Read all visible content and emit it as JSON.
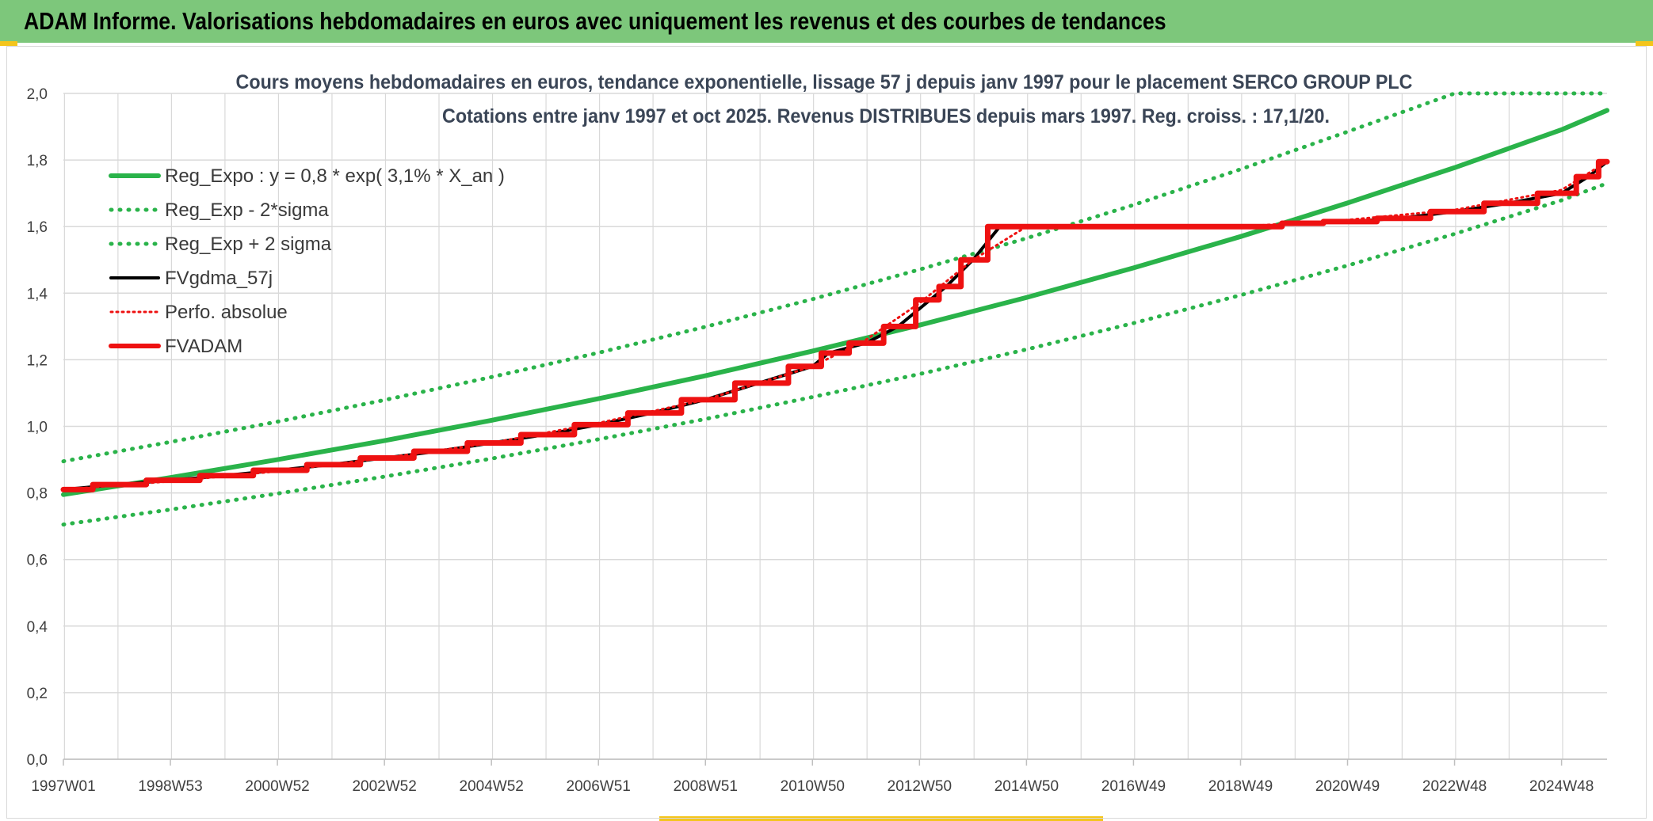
{
  "header": {
    "title": "ADAM Informe. Valorisations hebdomadaires en euros avec uniquement les revenus et des courbes de tendances"
  },
  "colors": {
    "banner": "#7dc77b",
    "trend_green": "#2ab34a",
    "black": "#000000",
    "red": "#ee1111",
    "grid": "#d9d9d9"
  },
  "chart_data": {
    "type": "line",
    "title": "Cours moyens hebdomadaires en euros, tendance exponentielle, lissage 57 j depuis janv 1997 pour le placement SERCO GROUP PLC",
    "subtitle": "Cotations entre janv 1997 et oct 2025. Revenus DISTRIBUES depuis mars 1997. Reg. croiss. : 17,1/20.",
    "xlabel": "",
    "ylabel": "",
    "ylim": [
      0,
      2
    ],
    "xlim": [
      1997.0,
      2025.85
    ],
    "grid": true,
    "legend_position": "top-left",
    "y_ticks": [
      "0,0",
      "0,2",
      "0,4",
      "0,6",
      "0,8",
      "1,0",
      "1,2",
      "1,4",
      "1,6",
      "1,8",
      "2,0"
    ],
    "x_ticks": [
      "1997W01",
      "1998W53",
      "2000W52",
      "2002W52",
      "2004W52",
      "2006W51",
      "2008W51",
      "2010W50",
      "2012W50",
      "2014W50",
      "2016W49",
      "2018W49",
      "2020W49",
      "2022W48",
      "2024W48"
    ],
    "x_tick_years": [
      1997.0,
      1999.0,
      2001.0,
      2003.0,
      2005.0,
      2007.0,
      2009.0,
      2011.0,
      2013.0,
      2015.0,
      2017.0,
      2019.0,
      2021.0,
      2023.0,
      2025.0
    ],
    "series": [
      {
        "name": "Reg_Expo : y = 0,8 * exp( 3,1% *  X_an )",
        "style": "solid",
        "color": "#2ab34a",
        "x": [
          1997.0,
          1999.0,
          2001.0,
          2003.0,
          2005.0,
          2007.0,
          2009.0,
          2011.0,
          2013.0,
          2015.0,
          2017.0,
          2019.0,
          2021.0,
          2023.0,
          2025.0,
          2025.85
        ],
        "y": [
          0.795,
          0.846,
          0.9,
          0.957,
          1.018,
          1.083,
          1.152,
          1.226,
          1.304,
          1.387,
          1.476,
          1.57,
          1.671,
          1.777,
          1.891,
          1.949
        ]
      },
      {
        "name": "Reg_Exp - 2*sigma",
        "style": "dotted",
        "color": "#2ab34a",
        "x": [
          1997.0,
          1999.0,
          2001.0,
          2003.0,
          2005.0,
          2007.0,
          2009.0,
          2011.0,
          2013.0,
          2015.0,
          2017.0,
          2019.0,
          2021.0,
          2023.0,
          2025.0,
          2025.85
        ],
        "y": [
          0.705,
          0.75,
          0.798,
          0.849,
          0.903,
          0.961,
          1.022,
          1.088,
          1.157,
          1.231,
          1.31,
          1.394,
          1.483,
          1.578,
          1.679,
          1.73
        ]
      },
      {
        "name": "Reg_Exp + 2 sigma",
        "style": "dotted",
        "color": "#2ab34a",
        "x": [
          1997.0,
          1999.0,
          2001.0,
          2003.0,
          2005.0,
          2007.0,
          2009.0,
          2011.0,
          2013.0,
          2015.0,
          2017.0,
          2019.0,
          2021.0,
          2023.0,
          2025.0,
          2025.85
        ],
        "y": [
          0.895,
          0.953,
          1.014,
          1.079,
          1.148,
          1.221,
          1.299,
          1.382,
          1.471,
          1.565,
          1.665,
          1.772,
          1.885,
          2.0,
          2.0,
          2.0
        ]
      },
      {
        "name": "FVgdma_57j",
        "style": "solid",
        "color": "#000000",
        "x": [
          1997.0,
          1998.0,
          1999.0,
          2000.0,
          2001.0,
          2002.0,
          2003.0,
          2004.0,
          2005.0,
          2006.0,
          2007.0,
          2008.0,
          2009.0,
          2010.0,
          2011.0,
          2011.3,
          2012.0,
          2012.6,
          2013.2,
          2013.5,
          2014.0,
          2014.5,
          2015.0,
          2016.0,
          2017.0,
          2018.0,
          2019.0,
          2019.5,
          2020.0,
          2021.0,
          2022.0,
          2023.0,
          2024.0,
          2025.0,
          2025.5,
          2025.85
        ],
        "y": [
          0.81,
          0.825,
          0.838,
          0.852,
          0.868,
          0.885,
          0.905,
          0.925,
          0.95,
          0.975,
          1.005,
          1.04,
          1.08,
          1.13,
          1.18,
          1.22,
          1.25,
          1.3,
          1.38,
          1.42,
          1.5,
          1.6,
          1.6,
          1.6,
          1.6,
          1.6,
          1.6,
          1.6,
          1.61,
          1.615,
          1.625,
          1.645,
          1.67,
          1.7,
          1.75,
          1.795
        ]
      },
      {
        "name": "Perfo. absolue",
        "style": "dotted",
        "color": "#ee1111",
        "x": [
          1997.0,
          1999.0,
          2001.0,
          2003.0,
          2005.0,
          2007.0,
          2009.0,
          2011.0,
          2012.0,
          2013.0,
          2014.0,
          2015.0,
          2017.0,
          2019.0,
          2021.0,
          2023.0,
          2025.0,
          2025.85
        ],
        "y": [
          0.81,
          0.835,
          0.865,
          0.905,
          0.95,
          1.01,
          1.08,
          1.18,
          1.26,
          1.37,
          1.5,
          1.6,
          1.6,
          1.6,
          1.62,
          1.65,
          1.71,
          1.795
        ]
      },
      {
        "name": "FVADAM",
        "style": "solid",
        "color": "#ee1111",
        "x": [
          1997.0,
          1998.0,
          1999.0,
          2000.0,
          2001.0,
          2002.0,
          2003.0,
          2004.0,
          2005.0,
          2006.0,
          2007.0,
          2008.0,
          2009.0,
          2010.0,
          2011.0,
          2011.3,
          2012.0,
          2012.6,
          2013.2,
          2013.5,
          2014.0,
          2014.5,
          2015.0,
          2016.0,
          2017.0,
          2018.0,
          2019.0,
          2019.5,
          2020.0,
          2021.0,
          2022.0,
          2023.0,
          2024.0,
          2025.0,
          2025.5,
          2025.85
        ],
        "y": [
          0.81,
          0.825,
          0.838,
          0.852,
          0.868,
          0.885,
          0.905,
          0.925,
          0.95,
          0.975,
          1.005,
          1.04,
          1.08,
          1.13,
          1.18,
          1.22,
          1.25,
          1.3,
          1.38,
          1.42,
          1.5,
          1.6,
          1.6,
          1.6,
          1.6,
          1.6,
          1.6,
          1.6,
          1.61,
          1.615,
          1.625,
          1.645,
          1.67,
          1.7,
          1.75,
          1.795
        ]
      }
    ]
  }
}
